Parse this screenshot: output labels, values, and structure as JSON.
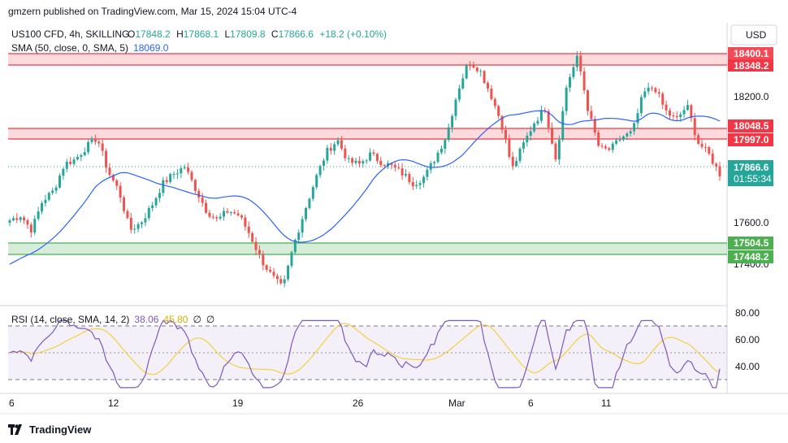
{
  "header": {
    "publisher": "gmzern published on TradingView.com, Mar 15, 2024 15:04 UTC-4"
  },
  "legend": {
    "symbol": "US100 CFD, 4h, SKILLING",
    "o_label": "O",
    "o_value": "17848.2",
    "h_label": "H",
    "h_value": "17868.1",
    "l_label": "L",
    "l_value": "17809.8",
    "c_label": "C",
    "c_value": "17866.6",
    "change": "+18.2 (+0.10%)",
    "sma_label": "SMA (50, close, 0, SMA, 5)",
    "sma_value": "18069.0"
  },
  "currency_button": "USD",
  "price_axis": {
    "ticks": [
      "18200.0",
      "17600.0",
      "17400.0"
    ]
  },
  "levels": {
    "resistance_high": {
      "top": "18400.1",
      "bottom": "18348.2"
    },
    "resistance_mid": {
      "top": "18048.5",
      "bottom": "17997.0"
    },
    "support": {
      "top": "17504.5",
      "bottom": "17448.2"
    }
  },
  "last_price": {
    "value": "17866.6",
    "countdown": "01:55:34"
  },
  "rsi": {
    "label": "RSI (14, close, SMA, 14, 2)",
    "value": "38.06",
    "ma_value": "45.80",
    "extra1": "∅",
    "extra2": "∅",
    "ticks": [
      "80.00",
      "60.00",
      "40.00"
    ]
  },
  "time_axis": [
    "6",
    "12",
    "19",
    "26",
    "Mar",
    "6",
    "11"
  ],
  "footer": {
    "brand": "TradingView"
  },
  "colors": {
    "up": "#26a69a",
    "down": "#ef5350",
    "sma": "#2962ff",
    "rsi": "#7e57c2",
    "rsi_ma": "#f4d03f",
    "resistance": "#f23645",
    "support": "#4caf50"
  },
  "chart_data": {
    "type": "candlestick",
    "timeframe": "4h",
    "x_range": [
      "Feb 6",
      "Mar 15"
    ],
    "y_range": [
      17350,
      18450
    ],
    "close_path": [
      17680,
      17700,
      17640,
      17760,
      17800,
      17910,
      17930,
      17980,
      18020,
      17880,
      17800,
      17640,
      17670,
      17740,
      17830,
      17870,
      17900,
      17810,
      17720,
      17680,
      17720,
      17700,
      17620,
      17520,
      17450,
      17400,
      17580,
      17720,
      17850,
      17960,
      18010,
      17920,
      17910,
      17950,
      17920,
      17900,
      17870,
      17830,
      17860,
      17940,
      18030,
      18210,
      18330,
      18300,
      18200,
      18080,
      17890,
      17990,
      18080,
      18140,
      17930,
      18240,
      18350,
      18120,
      17970,
      17970,
      18020,
      18040,
      18200,
      18230,
      18130,
      18090,
      18150,
      18000,
      17950,
      17870
    ],
    "sma50_endpoints": {
      "start": 17500,
      "end": 18069.0
    },
    "rsi_range": [
      20,
      85
    ],
    "rsi_last": 38.06,
    "rsi_ma_last": 45.8
  }
}
